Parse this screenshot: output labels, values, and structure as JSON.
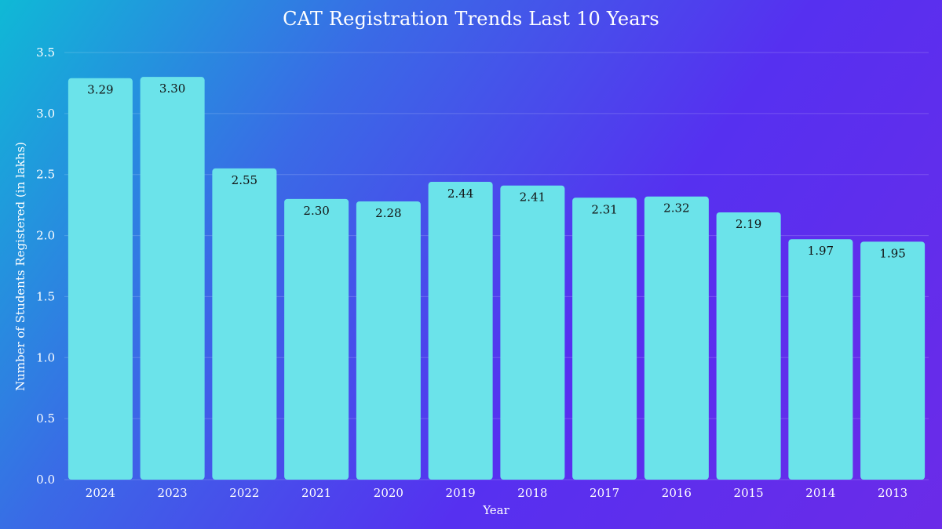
{
  "chart_data": {
    "type": "bar",
    "title": "CAT Registration Trends Last 10 Years",
    "xlabel": "Year",
    "ylabel": "Number of Students Registered (in lakhs)",
    "categories": [
      "2024",
      "2023",
      "2022",
      "2021",
      "2020",
      "2019",
      "2018",
      "2017",
      "2016",
      "2015",
      "2014",
      "2013"
    ],
    "values": [
      3.29,
      3.3,
      2.55,
      2.3,
      2.28,
      2.44,
      2.41,
      2.31,
      2.32,
      2.19,
      1.97,
      1.95
    ],
    "data_labels": [
      "3.29",
      "3.30",
      "2.55",
      "2.30",
      "2.28",
      "2.44",
      "2.41",
      "2.31",
      "2.32",
      "2.19",
      "1.97",
      "1.95"
    ],
    "ylim": [
      0,
      3.5
    ],
    "yticks": [
      "0.0",
      "0.5",
      "1.0",
      "1.5",
      "2.0",
      "2.5",
      "3.0",
      "3.5"
    ],
    "grid": true,
    "colors": {
      "bar": "#6be3ea",
      "text": "#ffffff",
      "data_label": "#111111",
      "background_start": "#0fb9d6",
      "background_end": "#6b2be8"
    }
  }
}
